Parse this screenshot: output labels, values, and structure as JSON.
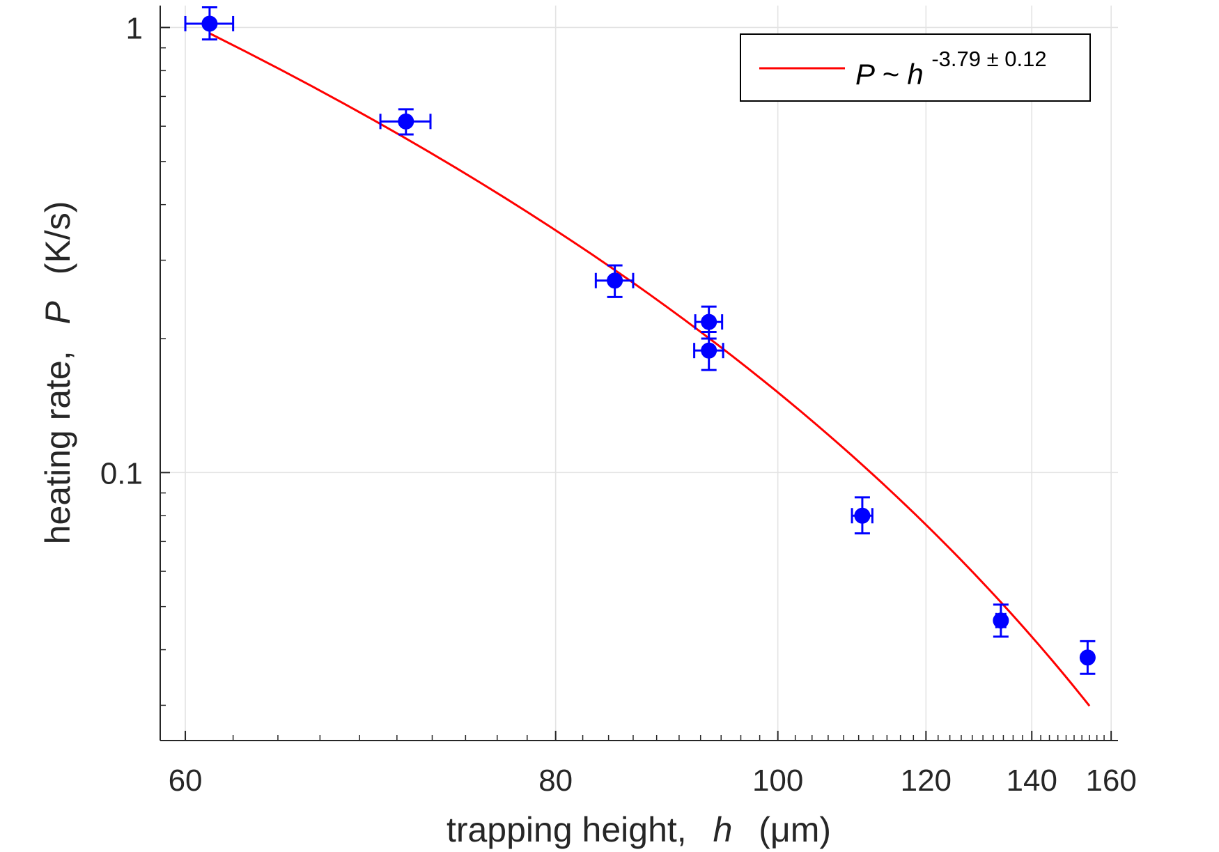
{
  "chart_data": {
    "type": "scatter",
    "title": "",
    "xlabel": {
      "prefix": "trapping height,",
      "symbol": "h",
      "unit": "(μm)"
    },
    "ylabel": {
      "prefix": "heating rate,",
      "symbol": "P",
      "unit": "(K/s)"
    },
    "xscale": "reciprocal",
    "yscale": "log",
    "xlim": [
      59,
      162
    ],
    "ylim": [
      0.025,
      1.12
    ],
    "xticks": [
      60,
      80,
      100,
      120,
      140,
      160
    ],
    "xtick_labels": [
      "60",
      "80",
      "100",
      "120",
      "140",
      "160"
    ],
    "xminor_ticks": [
      62,
      64,
      66,
      68,
      70,
      72,
      74,
      76,
      78,
      82,
      84,
      86,
      88,
      90,
      92,
      94,
      96,
      98,
      102,
      104,
      106,
      108,
      110,
      112,
      114,
      116,
      118,
      122,
      124,
      126,
      128,
      130,
      132,
      134,
      136,
      138,
      142,
      144,
      146,
      148,
      150,
      152,
      154,
      156,
      158
    ],
    "yticks": [
      0.1,
      1
    ],
    "ytick_labels": [
      "0.1",
      "1"
    ],
    "yminor_ticks": [
      0.03,
      0.04,
      0.05,
      0.06,
      0.07,
      0.08,
      0.09,
      0.2,
      0.3,
      0.4,
      0.5,
      0.6,
      0.7,
      0.8,
      0.9
    ],
    "grid": true,
    "legend": {
      "position": "top-right",
      "entries": [
        {
          "label_main": "P ~ h",
          "label_exponent": "-3.79 ± 0.12",
          "color": "#ff0000"
        }
      ]
    },
    "series": [
      {
        "kind": "points",
        "color": "#0000ff",
        "points": [
          {
            "x": 61.0,
            "y": 1.02,
            "xerr": 1.0,
            "ylo": 0.94,
            "yhi": 1.11
          },
          {
            "x": 70.5,
            "y": 0.615,
            "xerr": 1.4,
            "ylo": 0.575,
            "yhi": 0.655
          },
          {
            "x": 84.5,
            "y": 0.27,
            "xerr": 1.5,
            "ylo": 0.248,
            "yhi": 0.292
          },
          {
            "x": 92.8,
            "y": 0.218,
            "xerr": 1.3,
            "ylo": 0.2,
            "yhi": 0.236
          },
          {
            "x": 92.8,
            "y": 0.188,
            "xerr": 1.4,
            "ylo": 0.17,
            "yhi": 0.207
          },
          {
            "x": 110.5,
            "y": 0.08,
            "xerr": 1.4,
            "ylo": 0.073,
            "yhi": 0.088
          },
          {
            "x": 133.5,
            "y": 0.0465,
            "xerr": 0.9,
            "ylo": 0.0428,
            "yhi": 0.0505
          },
          {
            "x": 153.5,
            "y": 0.0384,
            "xerr": 0.5,
            "ylo": 0.0353,
            "yhi": 0.0418
          }
        ]
      },
      {
        "kind": "fit",
        "color": "#ff0000",
        "x": [
          61.0,
          154.0
        ],
        "y": [
          0.97,
          0.0299
        ]
      }
    ]
  }
}
